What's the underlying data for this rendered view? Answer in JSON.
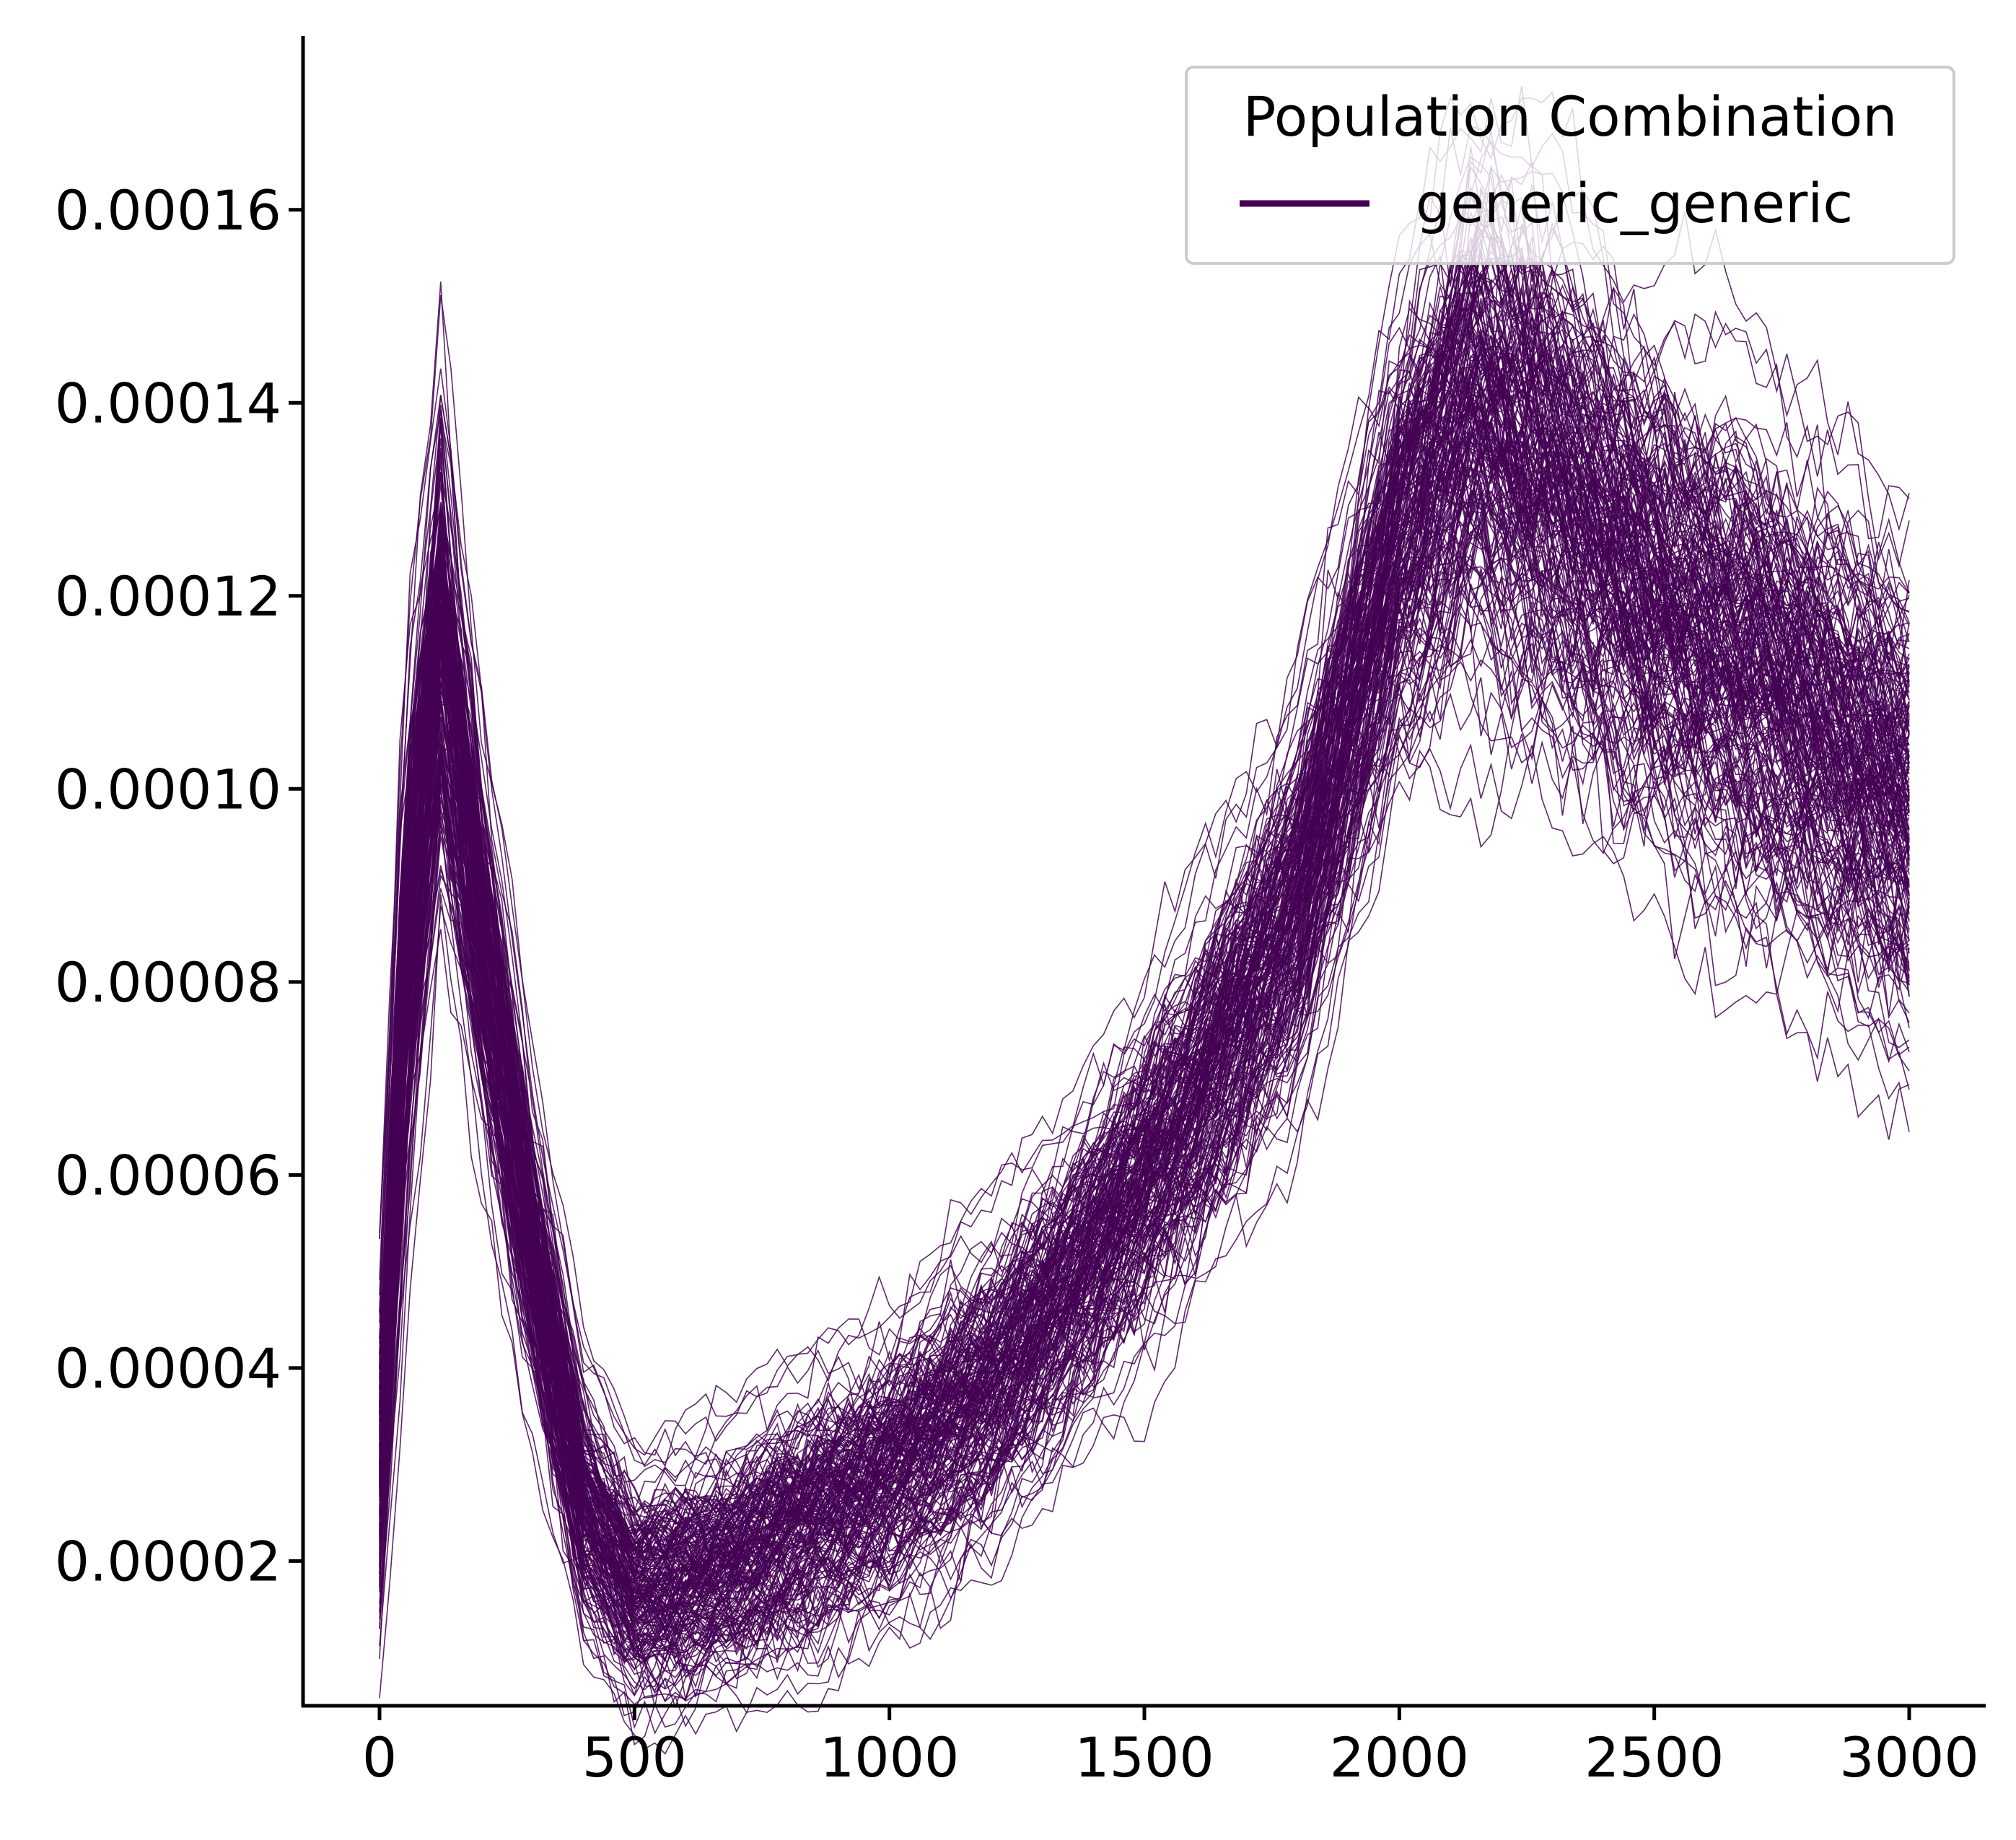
{
  "chart_data": {
    "type": "line",
    "title": "",
    "xlabel": "",
    "ylabel": "",
    "xlim": [
      -150,
      3150
    ],
    "ylim": [
      5e-06,
      0.000178
    ],
    "xticks": [
      0,
      500,
      1000,
      1500,
      2000,
      2500,
      3000
    ],
    "xtick_labels": [
      "0",
      "500",
      "1000",
      "1500",
      "2000",
      "2500",
      "3000"
    ],
    "yticks": [
      2e-05,
      4e-05,
      6e-05,
      8e-05,
      0.0001,
      0.00012,
      0.00014,
      0.00016
    ],
    "ytick_labels": [
      "0.00002",
      "0.00004",
      "0.00006",
      "0.00008",
      "0.00010",
      "0.00012",
      "0.00014",
      "0.00016"
    ],
    "grid": false,
    "legend": {
      "title": "Population Combination",
      "placement": "top-right",
      "entries": [
        {
          "name": "generic_generic",
          "color": "#440154"
        }
      ]
    },
    "line_count": 200,
    "series_color": "#440154",
    "mean_profile": {
      "x": [
        0,
        50,
        120,
        200,
        300,
        400,
        500,
        600,
        700,
        800,
        900,
        1000,
        1200,
        1400,
        1600,
        1800,
        2000,
        2150,
        2300,
        2500,
        2700,
        2900,
        3000
      ],
      "y": [
        3e-05,
        8e-05,
        0.000116,
        8.5e-05,
        5.2e-05,
        2.6e-05,
        1.7e-05,
        1.8e-05,
        2e-05,
        2.3e-05,
        2.6e-05,
        2.9e-05,
        3.8e-05,
        5.2e-05,
        6.8e-05,
        8.8e-05,
        0.000126,
        0.00014,
        0.000132,
        0.00012,
        0.000112,
        0.000103,
        9.8e-05
      ]
    },
    "spread": {
      "x": [
        0,
        50,
        120,
        200,
        300,
        400,
        500,
        700,
        1000,
        1500,
        1800,
        2000,
        2150,
        2300,
        2500,
        2700,
        2900,
        3000
      ],
      "half_width": [
        1.4e-05,
        2.2e-05,
        2e-05,
        1.5e-05,
        1.2e-05,
        1e-05,
        9e-06,
        1e-05,
        1.1e-05,
        1.3e-05,
        1.5e-05,
        1.8e-05,
        2.2e-05,
        2.2e-05,
        2e-05,
        2e-05,
        2e-05,
        2e-05
      ]
    }
  }
}
